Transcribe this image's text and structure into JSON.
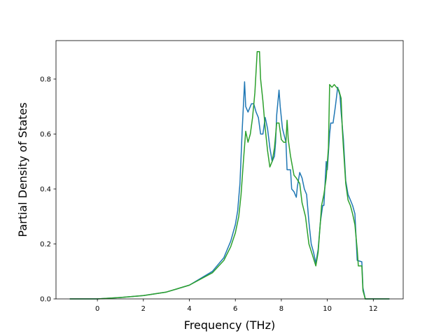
{
  "chart_data": {
    "type": "line",
    "title": "",
    "xlabel": "Frequency (THz)",
    "ylabel": "Partial Density of States",
    "xlim": [
      -1.8,
      13.3
    ],
    "ylim": [
      0,
      0.94
    ],
    "xticks": [
      0,
      2,
      4,
      6,
      8,
      10,
      12
    ],
    "xtick_labels": [
      "0",
      "2",
      "4",
      "6",
      "8",
      "10",
      "12"
    ],
    "yticks": [
      0.0,
      0.2,
      0.4,
      0.6,
      0.8
    ],
    "ytick_labels": [
      "0.0",
      "0.2",
      "0.4",
      "0.6",
      "0.8"
    ],
    "grid": false,
    "legend": "none",
    "series": [
      {
        "color": "#1f77b4",
        "points": [
          [
            -1.2,
            0
          ],
          [
            0,
            0
          ],
          [
            1,
            0.005
          ],
          [
            2,
            0.012
          ],
          [
            3,
            0.025
          ],
          [
            4,
            0.05
          ],
          [
            5,
            0.1
          ],
          [
            5.5,
            0.15
          ],
          [
            5.8,
            0.21
          ],
          [
            6,
            0.27
          ],
          [
            6.1,
            0.32
          ],
          [
            6.2,
            0.42
          ],
          [
            6.3,
            0.62
          ],
          [
            6.4,
            0.79
          ],
          [
            6.45,
            0.7
          ],
          [
            6.55,
            0.68
          ],
          [
            6.7,
            0.71
          ],
          [
            6.8,
            0.71
          ],
          [
            6.9,
            0.68
          ],
          [
            7.0,
            0.66
          ],
          [
            7.1,
            0.6
          ],
          [
            7.2,
            0.6
          ],
          [
            7.3,
            0.66
          ],
          [
            7.4,
            0.62
          ],
          [
            7.5,
            0.55
          ],
          [
            7.6,
            0.5
          ],
          [
            7.7,
            0.52
          ],
          [
            7.75,
            0.57
          ],
          [
            7.8,
            0.67
          ],
          [
            7.9,
            0.76
          ],
          [
            7.95,
            0.7
          ],
          [
            8.05,
            0.62
          ],
          [
            8.2,
            0.57
          ],
          [
            8.25,
            0.47
          ],
          [
            8.4,
            0.47
          ],
          [
            8.45,
            0.4
          ],
          [
            8.55,
            0.39
          ],
          [
            8.65,
            0.37
          ],
          [
            8.7,
            0.41
          ],
          [
            8.8,
            0.46
          ],
          [
            8.9,
            0.44
          ],
          [
            9.0,
            0.4
          ],
          [
            9.1,
            0.38
          ],
          [
            9.2,
            0.28
          ],
          [
            9.3,
            0.2
          ],
          [
            9.4,
            0.17
          ],
          [
            9.5,
            0.13
          ],
          [
            9.6,
            0.18
          ],
          [
            9.7,
            0.28
          ],
          [
            9.8,
            0.34
          ],
          [
            9.85,
            0.34
          ],
          [
            9.95,
            0.5
          ],
          [
            10.0,
            0.47
          ],
          [
            10.1,
            0.6
          ],
          [
            10.15,
            0.64
          ],
          [
            10.25,
            0.64
          ],
          [
            10.35,
            0.7
          ],
          [
            10.45,
            0.77
          ],
          [
            10.55,
            0.74
          ],
          [
            10.6,
            0.68
          ],
          [
            10.7,
            0.58
          ],
          [
            10.8,
            0.43
          ],
          [
            10.9,
            0.38
          ],
          [
            11.0,
            0.36
          ],
          [
            11.1,
            0.34
          ],
          [
            11.2,
            0.31
          ],
          [
            11.3,
            0.14
          ],
          [
            11.5,
            0.135
          ],
          [
            11.55,
            0.04
          ],
          [
            11.65,
            0
          ],
          [
            12.7,
            0
          ]
        ]
      },
      {
        "color": "#2ca02c",
        "points": [
          [
            -1.2,
            0
          ],
          [
            0,
            0
          ],
          [
            1,
            0.005
          ],
          [
            2,
            0.012
          ],
          [
            3,
            0.025
          ],
          [
            4,
            0.05
          ],
          [
            5,
            0.095
          ],
          [
            5.5,
            0.14
          ],
          [
            5.8,
            0.19
          ],
          [
            6,
            0.24
          ],
          [
            6.15,
            0.3
          ],
          [
            6.25,
            0.38
          ],
          [
            6.35,
            0.5
          ],
          [
            6.45,
            0.61
          ],
          [
            6.55,
            0.57
          ],
          [
            6.65,
            0.6
          ],
          [
            6.75,
            0.66
          ],
          [
            6.85,
            0.75
          ],
          [
            6.95,
            0.9
          ],
          [
            7.05,
            0.9
          ],
          [
            7.1,
            0.8
          ],
          [
            7.2,
            0.72
          ],
          [
            7.3,
            0.62
          ],
          [
            7.4,
            0.54
          ],
          [
            7.5,
            0.48
          ],
          [
            7.6,
            0.5
          ],
          [
            7.7,
            0.55
          ],
          [
            7.8,
            0.64
          ],
          [
            7.9,
            0.64
          ],
          [
            8.0,
            0.58
          ],
          [
            8.1,
            0.57
          ],
          [
            8.2,
            0.57
          ],
          [
            8.25,
            0.65
          ],
          [
            8.3,
            0.58
          ],
          [
            8.4,
            0.52
          ],
          [
            8.55,
            0.45
          ],
          [
            8.65,
            0.44
          ],
          [
            8.8,
            0.42
          ],
          [
            8.9,
            0.35
          ],
          [
            9.05,
            0.3
          ],
          [
            9.2,
            0.2
          ],
          [
            9.35,
            0.16
          ],
          [
            9.5,
            0.12
          ],
          [
            9.6,
            0.17
          ],
          [
            9.7,
            0.28
          ],
          [
            9.75,
            0.34
          ],
          [
            9.85,
            0.38
          ],
          [
            9.95,
            0.44
          ],
          [
            10.05,
            0.55
          ],
          [
            10.1,
            0.78
          ],
          [
            10.2,
            0.77
          ],
          [
            10.3,
            0.78
          ],
          [
            10.4,
            0.77
          ],
          [
            10.5,
            0.76
          ],
          [
            10.6,
            0.73
          ],
          [
            10.65,
            0.62
          ],
          [
            10.7,
            0.55
          ],
          [
            10.8,
            0.42
          ],
          [
            10.9,
            0.36
          ],
          [
            11.0,
            0.34
          ],
          [
            11.1,
            0.31
          ],
          [
            11.2,
            0.27
          ],
          [
            11.3,
            0.18
          ],
          [
            11.35,
            0.12
          ],
          [
            11.5,
            0.12
          ],
          [
            11.55,
            0.03
          ],
          [
            11.65,
            0
          ],
          [
            12.7,
            0
          ]
        ]
      }
    ]
  }
}
